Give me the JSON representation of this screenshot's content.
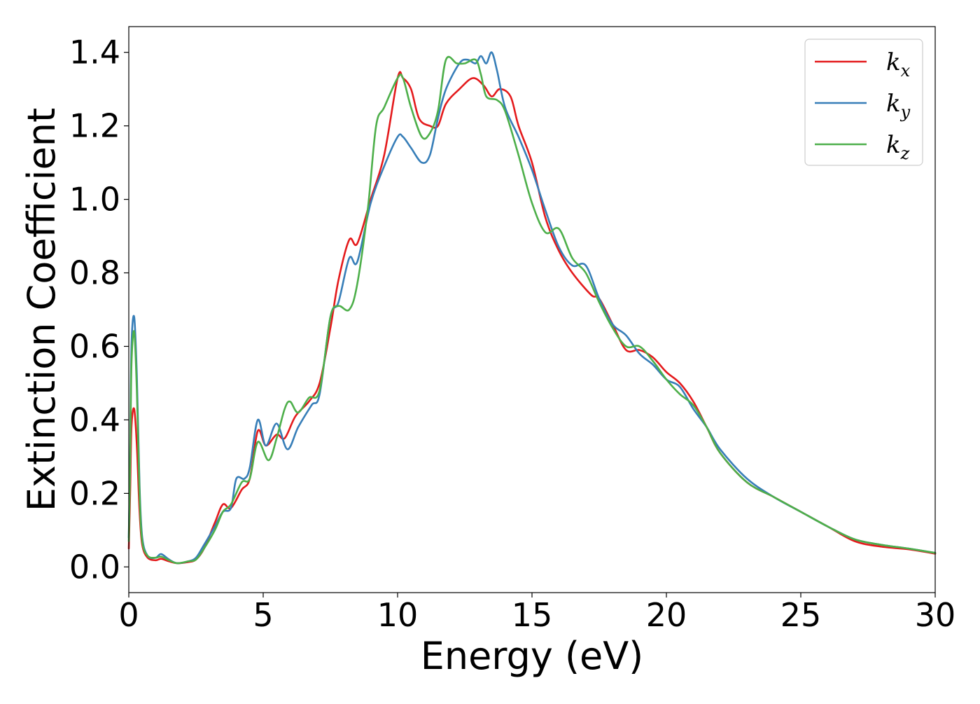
{
  "chart_data": {
    "type": "line",
    "title": "",
    "xlabel": "Energy (eV)",
    "ylabel": "Extinction Coefficient",
    "xlim": [
      0,
      30
    ],
    "ylim": [
      -0.07,
      1.47
    ],
    "xticks": [
      0,
      5,
      10,
      15,
      20,
      25,
      30
    ],
    "xtick_labels": [
      "0",
      "5",
      "10",
      "15",
      "20",
      "25",
      "30"
    ],
    "yticks": [
      0.0,
      0.2,
      0.4,
      0.6,
      0.8,
      1.0,
      1.2,
      1.4
    ],
    "ytick_labels": [
      "0.0",
      "0.2",
      "0.4",
      "0.6",
      "0.8",
      "1.0",
      "1.2",
      "1.4"
    ],
    "grid": false,
    "legend_position": "top-right",
    "series": [
      {
        "name": "k_x",
        "legend_base": "k",
        "legend_sub": "x",
        "color": "#e41a1c",
        "points": [
          [
            0,
            0.05
          ],
          [
            0.05,
            0.2
          ],
          [
            0.1,
            0.38
          ],
          [
            0.2,
            0.43
          ],
          [
            0.3,
            0.33
          ],
          [
            0.4,
            0.15
          ],
          [
            0.5,
            0.06
          ],
          [
            0.7,
            0.025
          ],
          [
            1.0,
            0.018
          ],
          [
            1.2,
            0.022
          ],
          [
            1.5,
            0.015
          ],
          [
            1.8,
            0.01
          ],
          [
            2.2,
            0.013
          ],
          [
            2.5,
            0.02
          ],
          [
            2.8,
            0.05
          ],
          [
            3.2,
            0.12
          ],
          [
            3.5,
            0.17
          ],
          [
            3.8,
            0.16
          ],
          [
            4.2,
            0.21
          ],
          [
            4.5,
            0.24
          ],
          [
            4.8,
            0.37
          ],
          [
            5.1,
            0.33
          ],
          [
            5.5,
            0.36
          ],
          [
            5.8,
            0.35
          ],
          [
            6.2,
            0.41
          ],
          [
            6.7,
            0.45
          ],
          [
            7.1,
            0.5
          ],
          [
            7.5,
            0.65
          ],
          [
            7.8,
            0.78
          ],
          [
            8.2,
            0.89
          ],
          [
            8.5,
            0.88
          ],
          [
            9.0,
            1.0
          ],
          [
            9.5,
            1.12
          ],
          [
            10.0,
            1.33
          ],
          [
            10.2,
            1.33
          ],
          [
            10.5,
            1.3
          ],
          [
            10.8,
            1.22
          ],
          [
            11.2,
            1.2
          ],
          [
            11.5,
            1.2
          ],
          [
            11.8,
            1.26
          ],
          [
            12.3,
            1.3
          ],
          [
            12.8,
            1.33
          ],
          [
            13.2,
            1.31
          ],
          [
            13.5,
            1.28
          ],
          [
            13.8,
            1.3
          ],
          [
            14.2,
            1.28
          ],
          [
            14.5,
            1.2
          ],
          [
            15.0,
            1.1
          ],
          [
            15.5,
            0.95
          ],
          [
            16.0,
            0.86
          ],
          [
            16.5,
            0.8
          ],
          [
            17.2,
            0.74
          ],
          [
            17.5,
            0.73
          ],
          [
            18.0,
            0.66
          ],
          [
            18.5,
            0.59
          ],
          [
            19.0,
            0.59
          ],
          [
            19.5,
            0.57
          ],
          [
            20.0,
            0.53
          ],
          [
            20.5,
            0.5
          ],
          [
            21.0,
            0.45
          ],
          [
            21.5,
            0.38
          ],
          [
            22.0,
            0.31
          ],
          [
            23.0,
            0.23
          ],
          [
            24.0,
            0.19
          ],
          [
            25.0,
            0.15
          ],
          [
            26.0,
            0.11
          ],
          [
            27.0,
            0.07
          ],
          [
            28.0,
            0.055
          ],
          [
            29.0,
            0.048
          ],
          [
            30.0,
            0.036
          ]
        ]
      },
      {
        "name": "k_y",
        "legend_base": "k",
        "legend_sub": "y",
        "color": "#377eb8",
        "points": [
          [
            0,
            0.08
          ],
          [
            0.05,
            0.3
          ],
          [
            0.1,
            0.6
          ],
          [
            0.2,
            0.68
          ],
          [
            0.3,
            0.52
          ],
          [
            0.4,
            0.22
          ],
          [
            0.5,
            0.08
          ],
          [
            0.7,
            0.03
          ],
          [
            1.0,
            0.025
          ],
          [
            1.2,
            0.035
          ],
          [
            1.5,
            0.02
          ],
          [
            1.8,
            0.01
          ],
          [
            2.2,
            0.015
          ],
          [
            2.5,
            0.025
          ],
          [
            2.8,
            0.06
          ],
          [
            3.2,
            0.11
          ],
          [
            3.5,
            0.15
          ],
          [
            3.8,
            0.16
          ],
          [
            4.0,
            0.24
          ],
          [
            4.3,
            0.24
          ],
          [
            4.5,
            0.27
          ],
          [
            4.8,
            0.4
          ],
          [
            5.1,
            0.33
          ],
          [
            5.5,
            0.39
          ],
          [
            5.9,
            0.32
          ],
          [
            6.3,
            0.38
          ],
          [
            6.8,
            0.44
          ],
          [
            7.1,
            0.47
          ],
          [
            7.5,
            0.68
          ],
          [
            7.8,
            0.72
          ],
          [
            8.2,
            0.84
          ],
          [
            8.5,
            0.83
          ],
          [
            9.0,
            0.99
          ],
          [
            9.5,
            1.09
          ],
          [
            10.0,
            1.17
          ],
          [
            10.2,
            1.17
          ],
          [
            10.5,
            1.14
          ],
          [
            10.9,
            1.1
          ],
          [
            11.2,
            1.12
          ],
          [
            11.5,
            1.22
          ],
          [
            11.8,
            1.3
          ],
          [
            12.3,
            1.37
          ],
          [
            12.6,
            1.38
          ],
          [
            12.9,
            1.37
          ],
          [
            13.1,
            1.39
          ],
          [
            13.3,
            1.37
          ],
          [
            13.5,
            1.4
          ],
          [
            13.7,
            1.35
          ],
          [
            14.0,
            1.25
          ],
          [
            14.5,
            1.17
          ],
          [
            15.0,
            1.08
          ],
          [
            15.5,
            0.97
          ],
          [
            16.0,
            0.87
          ],
          [
            16.5,
            0.82
          ],
          [
            17.0,
            0.82
          ],
          [
            17.5,
            0.73
          ],
          [
            18.0,
            0.66
          ],
          [
            18.5,
            0.63
          ],
          [
            19.0,
            0.58
          ],
          [
            19.5,
            0.55
          ],
          [
            20.0,
            0.51
          ],
          [
            20.5,
            0.49
          ],
          [
            21.0,
            0.43
          ],
          [
            21.5,
            0.38
          ],
          [
            22.0,
            0.32
          ],
          [
            23.0,
            0.24
          ],
          [
            24.0,
            0.19
          ],
          [
            25.0,
            0.15
          ],
          [
            26.0,
            0.11
          ],
          [
            27.0,
            0.075
          ],
          [
            28.0,
            0.06
          ],
          [
            29.0,
            0.05
          ],
          [
            30.0,
            0.038
          ]
        ]
      },
      {
        "name": "k_z",
        "legend_base": "k",
        "legend_sub": "z",
        "color": "#4daf4a",
        "points": [
          [
            0,
            0.07
          ],
          [
            0.05,
            0.28
          ],
          [
            0.1,
            0.55
          ],
          [
            0.2,
            0.64
          ],
          [
            0.3,
            0.48
          ],
          [
            0.4,
            0.2
          ],
          [
            0.5,
            0.07
          ],
          [
            0.7,
            0.03
          ],
          [
            1.0,
            0.025
          ],
          [
            1.2,
            0.028
          ],
          [
            1.5,
            0.018
          ],
          [
            1.8,
            0.01
          ],
          [
            2.2,
            0.015
          ],
          [
            2.5,
            0.02
          ],
          [
            2.8,
            0.05
          ],
          [
            3.2,
            0.1
          ],
          [
            3.5,
            0.15
          ],
          [
            3.8,
            0.17
          ],
          [
            4.2,
            0.23
          ],
          [
            4.5,
            0.24
          ],
          [
            4.8,
            0.34
          ],
          [
            5.2,
            0.29
          ],
          [
            5.5,
            0.35
          ],
          [
            5.8,
            0.43
          ],
          [
            6.0,
            0.45
          ],
          [
            6.3,
            0.42
          ],
          [
            6.7,
            0.46
          ],
          [
            7.1,
            0.48
          ],
          [
            7.5,
            0.68
          ],
          [
            7.8,
            0.71
          ],
          [
            8.2,
            0.7
          ],
          [
            8.5,
            0.77
          ],
          [
            8.9,
            0.98
          ],
          [
            9.2,
            1.2
          ],
          [
            9.5,
            1.25
          ],
          [
            10.0,
            1.33
          ],
          [
            10.2,
            1.33
          ],
          [
            10.5,
            1.25
          ],
          [
            10.9,
            1.17
          ],
          [
            11.2,
            1.18
          ],
          [
            11.5,
            1.24
          ],
          [
            11.8,
            1.38
          ],
          [
            12.2,
            1.37
          ],
          [
            12.5,
            1.37
          ],
          [
            12.9,
            1.38
          ],
          [
            13.1,
            1.34
          ],
          [
            13.3,
            1.28
          ],
          [
            13.7,
            1.27
          ],
          [
            14.0,
            1.24
          ],
          [
            14.5,
            1.12
          ],
          [
            15.0,
            0.99
          ],
          [
            15.5,
            0.91
          ],
          [
            16.0,
            0.92
          ],
          [
            16.5,
            0.84
          ],
          [
            17.0,
            0.8
          ],
          [
            17.5,
            0.72
          ],
          [
            18.0,
            0.65
          ],
          [
            18.5,
            0.6
          ],
          [
            19.0,
            0.6
          ],
          [
            19.5,
            0.56
          ],
          [
            20.0,
            0.51
          ],
          [
            20.5,
            0.47
          ],
          [
            21.0,
            0.44
          ],
          [
            21.5,
            0.38
          ],
          [
            22.0,
            0.31
          ],
          [
            23.0,
            0.23
          ],
          [
            24.0,
            0.19
          ],
          [
            25.0,
            0.15
          ],
          [
            26.0,
            0.11
          ],
          [
            27.0,
            0.075
          ],
          [
            28.0,
            0.06
          ],
          [
            29.0,
            0.05
          ],
          [
            30.0,
            0.038
          ]
        ]
      }
    ]
  }
}
